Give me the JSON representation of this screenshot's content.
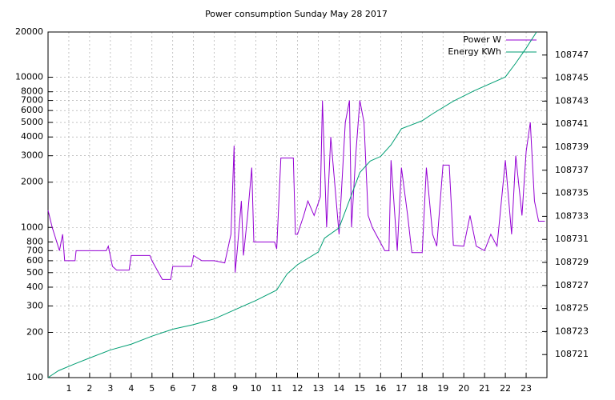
{
  "chart_data": {
    "type": "line",
    "title": "Power consumption Sunday May 28 2017",
    "log_y": true,
    "grid": true,
    "legend": "top-right",
    "xlim": [
      0,
      24
    ],
    "xticks": [
      1,
      2,
      3,
      4,
      5,
      6,
      7,
      8,
      9,
      10,
      11,
      12,
      13,
      14,
      15,
      16,
      17,
      18,
      19,
      20,
      21,
      22,
      23
    ],
    "ylim": [
      100,
      20000
    ],
    "yticks": [
      100,
      200,
      300,
      400,
      500,
      600,
      700,
      800,
      1000,
      2000,
      3000,
      4000,
      5000,
      6000,
      7000,
      8000,
      10000,
      20000
    ],
    "y2lim": [
      108719,
      108749
    ],
    "y2ticks": [
      108721,
      108723,
      108725,
      108727,
      108729,
      108731,
      108733,
      108735,
      108737,
      108739,
      108741,
      108743,
      108745,
      108747
    ],
    "series": [
      {
        "name": "Power W",
        "color": "#9400d3",
        "x": [
          0,
          0.2,
          0.55,
          0.7,
          0.8,
          1.3,
          1.35,
          2.8,
          2.9,
          3.1,
          3.3,
          3.9,
          4,
          4.9,
          5,
          5.5,
          5.9,
          6,
          6.9,
          7,
          7.4,
          8,
          8.5,
          8.8,
          8.95,
          9,
          9.1,
          9.3,
          9.4,
          9.6,
          9.8,
          9.9,
          10.9,
          11,
          11.2,
          11.8,
          11.9,
          12,
          12.3,
          12.5,
          12.8,
          13.1,
          13.2,
          13.4,
          13.6,
          14,
          14.3,
          14.5,
          14.6,
          14.8,
          15,
          15.2,
          15.4,
          15.6,
          16.2,
          16.4,
          16.5,
          16.8,
          17,
          17.3,
          17.5,
          18,
          18.2,
          18.5,
          18.7,
          19,
          19.3,
          19.5,
          20,
          20.3,
          20.6,
          21,
          21.3,
          21.6,
          22,
          22.3,
          22.5,
          22.8,
          23,
          23.2,
          23.4,
          23.6,
          23.9
        ],
        "values": [
          1300,
          1000,
          700,
          900,
          600,
          600,
          700,
          700,
          750,
          550,
          520,
          520,
          650,
          650,
          600,
          450,
          450,
          550,
          550,
          650,
          600,
          600,
          580,
          900,
          3500,
          500,
          700,
          1500,
          650,
          1200,
          2500,
          800,
          800,
          720,
          2900,
          2900,
          900,
          900,
          1200,
          1500,
          1200,
          1600,
          7000,
          1000,
          4000,
          900,
          5000,
          7000,
          1000,
          3000,
          7000,
          5000,
          1200,
          1000,
          700,
          700,
          2800,
          700,
          2500,
          1200,
          680,
          680,
          2500,
          900,
          750,
          2600,
          2600,
          760,
          750,
          1200,
          750,
          700,
          900,
          750,
          2800,
          900,
          3000,
          1200,
          3200,
          5000,
          1500,
          1100,
          1100
        ]
      },
      {
        "name": "Energy KWh",
        "color": "#009e73",
        "axis": "y2",
        "x": [
          0,
          0.5,
          1.3,
          2,
          3,
          4,
          5,
          6,
          7,
          8,
          9,
          10,
          11,
          11.5,
          12,
          13,
          13.3,
          14,
          14.5,
          15,
          15.5,
          16,
          16.5,
          17,
          18,
          18.5,
          19.5,
          20.5,
          22,
          22.5,
          23,
          23.5
        ],
        "values": [
          108719,
          108719.6,
          108720.2,
          108720.7,
          108721.4,
          108721.9,
          108722.6,
          108723.2,
          108723.6,
          108724.1,
          108724.9,
          108725.7,
          108726.6,
          108728,
          108728.8,
          108729.9,
          108731.1,
          108732,
          108734.4,
          108736.8,
          108737.8,
          108738.2,
          108739.2,
          108740.6,
          108741.3,
          108741.9,
          108743,
          108743.9,
          108745.1,
          108746.3,
          108747.6,
          108749
        ]
      }
    ]
  }
}
